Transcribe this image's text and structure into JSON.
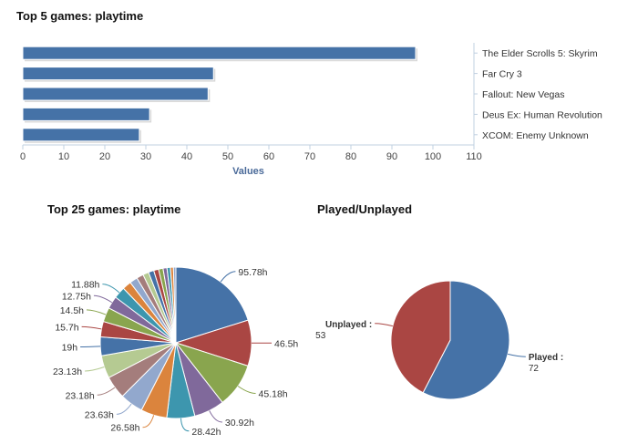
{
  "chart_data": [
    {
      "type": "bar",
      "orientation": "horizontal",
      "title": "Top 5 games: playtime",
      "categories": [
        "The Elder Scrolls 5: Skyrim",
        "Far Cry 3",
        "Fallout: New Vegas",
        "Deus Ex: Human Revolution",
        "XCOM: Enemy Unknown"
      ],
      "values": [
        95.78,
        46.5,
        45.18,
        30.92,
        28.42
      ],
      "xlabel": "Values",
      "xlim": [
        0,
        110
      ],
      "xticks": [
        "0",
        "10",
        "20",
        "30",
        "40",
        "50",
        "60",
        "70",
        "80",
        "90",
        "100",
        "110"
      ],
      "bar_color": "#4572a7",
      "legend_placement": "right"
    },
    {
      "type": "pie",
      "title": "Top 25 games: playtime",
      "values": [
        95.78,
        46.5,
        45.18,
        30.92,
        28.42,
        26.58,
        23.63,
        23.18,
        23.13,
        19,
        15.7,
        14.5,
        12.75,
        11.88,
        9,
        8,
        7,
        6,
        5.5,
        5,
        4.5,
        4,
        3.5,
        3,
        2.5
      ],
      "labels": [
        "95.78h",
        "46.5h",
        "45.18h",
        "30.92h",
        "28.42h",
        "26.58h",
        "23.63h",
        "23.18h",
        "23.13h",
        "19h",
        "15.7h",
        "14.5h",
        "12.75h",
        "11.88h",
        "",
        "",
        "",
        "",
        "",
        "",
        "",
        "",
        "",
        "",
        ""
      ],
      "colors": [
        "#4572a7",
        "#aa4643",
        "#89a54e",
        "#80699b",
        "#3d96ae",
        "#db843d",
        "#92a8cd",
        "#a47d7c",
        "#b5ca92",
        "#4572a7",
        "#aa4643",
        "#89a54e",
        "#80699b",
        "#3d96ae",
        "#db843d",
        "#92a8cd",
        "#a47d7c",
        "#b5ca92",
        "#4572a7",
        "#aa4643",
        "#89a54e",
        "#80699b",
        "#3d96ae",
        "#db843d",
        "#92a8cd"
      ]
    },
    {
      "type": "pie",
      "title": "Played/Unplayed",
      "categories": [
        "Played",
        "Unplayed"
      ],
      "values": [
        72,
        53
      ],
      "colors": [
        "#4572a7",
        "#aa4643"
      ]
    }
  ]
}
